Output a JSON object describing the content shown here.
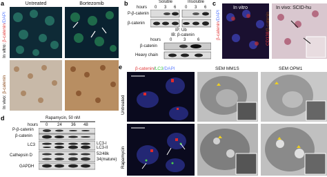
{
  "panel_a": {
    "letter": "a",
    "col_titles": [
      "Untreated",
      "Bortezomib"
    ],
    "row_label_vitro": [
      "In vitro: ",
      "β-catenin",
      "/DAPI"
    ],
    "row_label_vivo": [
      "In vivo: ",
      "β-catenin"
    ]
  },
  "panel_b": {
    "letter": "b",
    "fractions": [
      "Soluble",
      "Insoluble"
    ],
    "hours_label": "hours",
    "hours": [
      "0",
      "3",
      "6",
      "0",
      "3",
      "6"
    ],
    "rows": [
      "P-β-catenin",
      "β-catenin"
    ],
    "ip": "IP: Ub",
    "ib": "IB: β-catenin",
    "hours_label2": "hours",
    "hours2": [
      "0",
      "3",
      "6"
    ],
    "rows2": [
      "β-catenin",
      "Heavy chain"
    ]
  },
  "panel_c": {
    "letter": "c",
    "titles": [
      "In vitro",
      "In vivo: SCID-hu"
    ],
    "label_vitro": [
      "β-catenin",
      "/DAPI"
    ],
    "label_vivo": [
      "CD138",
      "/β-catenin"
    ]
  },
  "panel_d": {
    "letter": "d",
    "treatment": "Rapamycin, 50 nM",
    "hours_label": "hours",
    "hours": [
      "0",
      "24",
      "36",
      "48"
    ],
    "rows": [
      "P-β-catenin",
      "β-catenin",
      "LC3",
      "Cathepsin D",
      "GAPDH"
    ],
    "right_labels": [
      "LC3-I",
      "LC3-II",
      "52/48k",
      "34(mature)"
    ]
  },
  "panel_e": {
    "letter": "e",
    "stain": [
      "β-catenin",
      "/",
      "LC3",
      "/DAPI"
    ],
    "sem_titles": [
      "SEM MM1S",
      "SEM OPM1"
    ],
    "rows": [
      "Untreated",
      "Rapamycin"
    ]
  }
}
